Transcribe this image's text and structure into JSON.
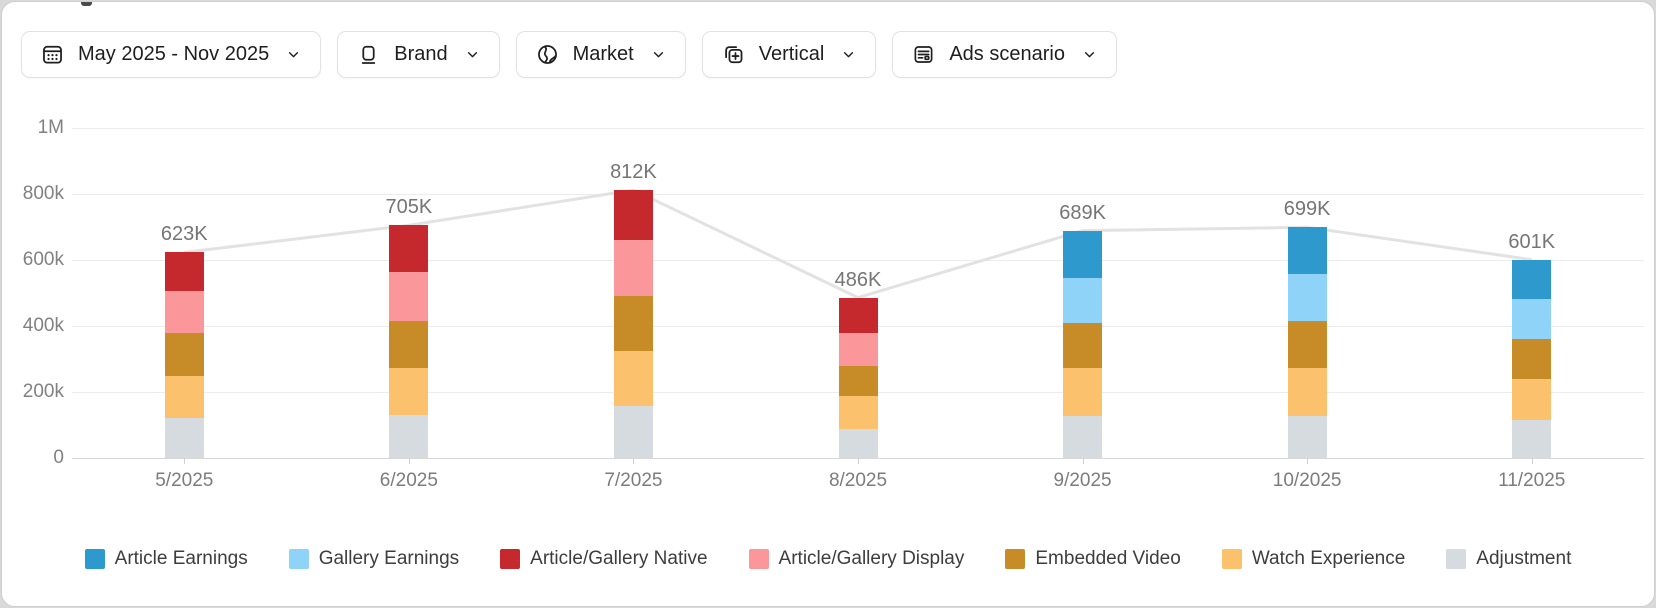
{
  "filters": [
    {
      "label": "May 2025 - Nov 2025",
      "icon": "calendar-icon"
    },
    {
      "label": "Brand",
      "icon": "brand-icon"
    },
    {
      "label": "Market",
      "icon": "globe-icon"
    },
    {
      "label": "Vertical",
      "icon": "vertical-icon"
    },
    {
      "label": "Ads scenario",
      "icon": "ads-scenario-icon"
    }
  ],
  "chart_data": {
    "type": "bar",
    "subtype": "stacked-bars-with-total-line",
    "categories": [
      "5/2025",
      "6/2025",
      "7/2025",
      "8/2025",
      "9/2025",
      "10/2025",
      "11/2025"
    ],
    "unit": "thousands",
    "ylim": [
      0,
      1000
    ],
    "y_ticks": [
      "1M",
      "800k",
      "600k",
      "400k",
      "200k",
      "0"
    ],
    "grid": true,
    "series": [
      {
        "name": "Adjustment",
        "color": "#d6dbe0",
        "values": [
          120,
          130,
          159,
          88,
          128,
          128,
          114
        ]
      },
      {
        "name": "Watch Experience",
        "color": "#fbc16d",
        "values": [
          130,
          144,
          166,
          99,
          145,
          145,
          126
        ]
      },
      {
        "name": "Embedded Video",
        "color": "#c78b28",
        "values": [
          130,
          142,
          167,
          91,
          136,
          141,
          122
        ]
      },
      {
        "name": "Article/Gallery Display",
        "color": "#f9979a",
        "values": [
          125,
          147,
          170,
          101,
          0,
          0,
          0
        ]
      },
      {
        "name": "Article/Gallery Native",
        "color": "#c5292e",
        "values": [
          118,
          142,
          150,
          107,
          0,
          0,
          0
        ]
      },
      {
        "name": "Gallery Earnings",
        "color": "#8fd4f8",
        "values": [
          0,
          0,
          0,
          0,
          137,
          145,
          121
        ]
      },
      {
        "name": "Article Earnings",
        "color": "#2e99cc",
        "values": [
          0,
          0,
          0,
          0,
          143,
          140,
          118
        ]
      }
    ],
    "totals": [
      623,
      705,
      812,
      486,
      689,
      699,
      601
    ],
    "totals_label": [
      "623K",
      "705K",
      "812K",
      "486K",
      "689K",
      "699K",
      "601K"
    ],
    "line_color": "#e2e2e2",
    "legend_position": "bottom",
    "legend": [
      "Article Earnings",
      "Gallery Earnings",
      "Article/Gallery Native",
      "Article/Gallery Display",
      "Embedded Video",
      "Watch Experience",
      "Adjustment"
    ]
  }
}
